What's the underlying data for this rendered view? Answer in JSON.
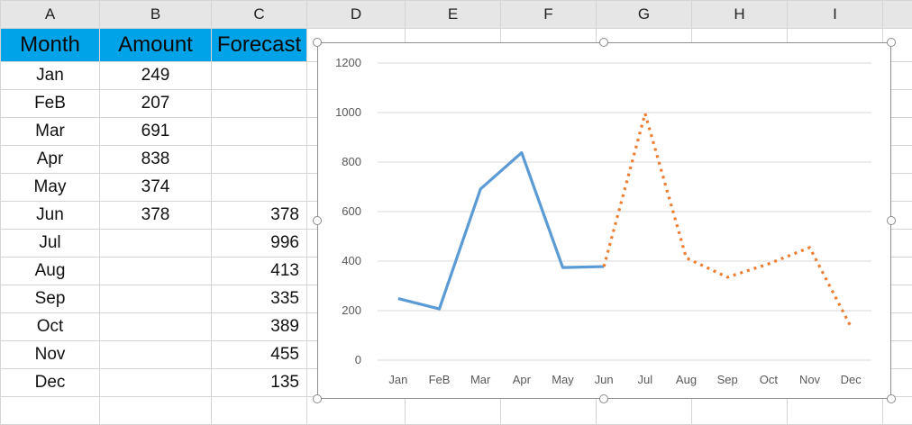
{
  "columns": [
    "A",
    "B",
    "C",
    "D",
    "E",
    "F",
    "G",
    "H",
    "I"
  ],
  "table": {
    "headers": [
      "Month",
      "Amount",
      "Forecast"
    ],
    "rows": [
      {
        "month": "Jan",
        "amount": "249",
        "forecast": ""
      },
      {
        "month": "FeB",
        "amount": "207",
        "forecast": ""
      },
      {
        "month": "Mar",
        "amount": "691",
        "forecast": ""
      },
      {
        "month": "Apr",
        "amount": "838",
        "forecast": ""
      },
      {
        "month": "May",
        "amount": "374",
        "forecast": ""
      },
      {
        "month": "Jun",
        "amount": "378",
        "forecast": "378"
      },
      {
        "month": "Jul",
        "amount": "",
        "forecast": "996"
      },
      {
        "month": "Aug",
        "amount": "",
        "forecast": "413"
      },
      {
        "month": "Sep",
        "amount": "",
        "forecast": "335"
      },
      {
        "month": "Oct",
        "amount": "",
        "forecast": "389"
      },
      {
        "month": "Nov",
        "amount": "",
        "forecast": "455"
      },
      {
        "month": "Dec",
        "amount": "",
        "forecast": "135"
      }
    ]
  },
  "colors": {
    "header_fill": "#00a2e8",
    "amount_line": "#5b9bd5",
    "forecast_line": "#ed7d31",
    "gridline": "#d9d9d9"
  },
  "chart_data": {
    "type": "line",
    "categories": [
      "Jan",
      "FeB",
      "Mar",
      "Apr",
      "May",
      "Jun",
      "Jul",
      "Aug",
      "Sep",
      "Oct",
      "Nov",
      "Dec"
    ],
    "series": [
      {
        "values": [
          249,
          207,
          691,
          838,
          374,
          378,
          null,
          null,
          null,
          null,
          null,
          null
        ],
        "style": "solid",
        "color": "#5b9bd5"
      },
      {
        "values": [
          null,
          null,
          null,
          null,
          null,
          378,
          996,
          413,
          335,
          389,
          455,
          135
        ],
        "style": "dotted",
        "color": "#ed7d31"
      }
    ],
    "yticks": [
      0,
      200,
      400,
      600,
      800,
      1000,
      1200
    ],
    "ylim": [
      0,
      1200
    ],
    "grid": true,
    "legend": "none"
  }
}
